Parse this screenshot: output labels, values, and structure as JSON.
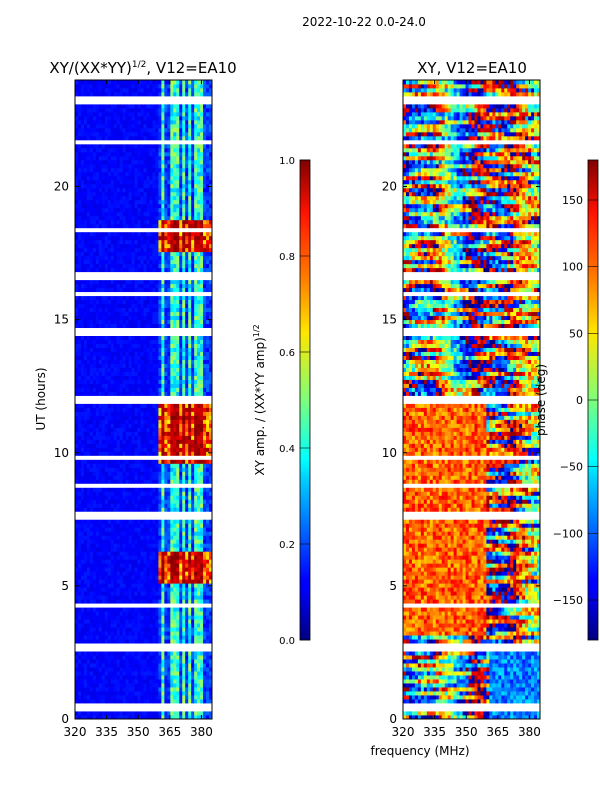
{
  "suptitle": "2022-10-22 0.0-24.0",
  "shared_xlabel": "frequency (MHz)",
  "chart_data": [
    {
      "type": "heatmap",
      "title_main": "XY/(XX*YY)",
      "title_exp": "1/2",
      "title_tail": ", V12=EA10",
      "xlabel": "",
      "ylabel": "UT (hours)",
      "xlim": [
        320,
        385
      ],
      "ylim": [
        0,
        24
      ],
      "xticks": [
        320,
        335,
        350,
        365,
        380
      ],
      "yticks": [
        0,
        5,
        10,
        15,
        20
      ],
      "colorscale": "jet",
      "colorbar": {
        "label_main": "XY amp. / (XX*YY amp)",
        "label_exp": "1/2",
        "range": [
          0.0,
          1.0
        ],
        "ticks": [
          "0.0",
          "0.2",
          "0.4",
          "0.6",
          "0.8",
          "1.0"
        ]
      },
      "bright_channels_mhz": [
        362,
        366,
        368,
        371.5,
        374,
        378,
        380
      ],
      "high_coherence_bands_hours": [
        [
          5.0,
          6.2
        ],
        [
          9.6,
          12.0
        ],
        [
          17.5,
          18.6
        ]
      ],
      "gaps_hours": [
        0.4,
        2.7,
        7.6,
        12.0,
        14.6,
        16.6,
        23.2
      ]
    },
    {
      "type": "heatmap",
      "title": "XY, V12=EA10",
      "xlabel": "",
      "ylabel": "",
      "xlim": [
        320,
        385
      ],
      "ylim": [
        0,
        24
      ],
      "xticks": [
        320,
        335,
        350,
        365,
        380
      ],
      "yticks": [
        0,
        5,
        10,
        15,
        20
      ],
      "colorscale": "jet",
      "colorbar": {
        "label": "phase (deg)",
        "range": [
          -180,
          180
        ],
        "ticks": [
          "150",
          "100",
          "50",
          "0",
          "−50",
          "−100",
          "−150"
        ],
        "tick_values": [
          150,
          100,
          50,
          0,
          -50,
          -100,
          -150
        ]
      },
      "gaps_hours": [
        0.4,
        2.7,
        7.6,
        12.0,
        14.6,
        16.6,
        23.2
      ]
    }
  ]
}
